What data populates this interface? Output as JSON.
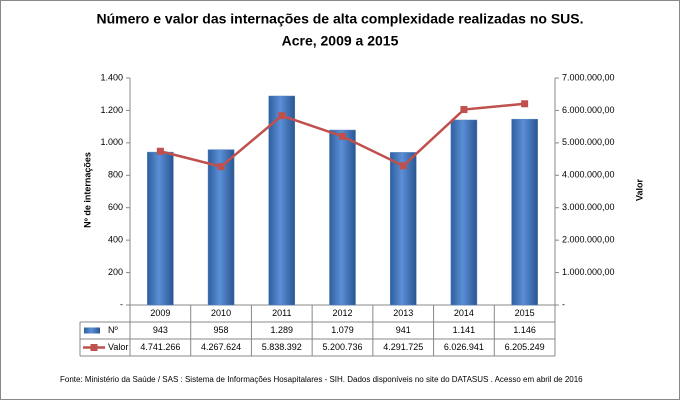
{
  "chart_data": {
    "type": "bar-line",
    "title": "Número e valor das internações de alta complexidade realizadas no SUS.",
    "subtitle": "Acre, 2009 a 2015",
    "y_label": "Nº de internações",
    "y2_label": "Valor",
    "categories": [
      "2009",
      "2010",
      "2011",
      "2012",
      "2013",
      "2014",
      "2015"
    ],
    "series": [
      {
        "name": "Nº",
        "type": "bar",
        "color": "#4f81bd",
        "values": [
          943,
          958,
          1289,
          1079,
          941,
          1141,
          1146
        ],
        "value_labels": [
          "943",
          "958",
          "1.289",
          "1.079",
          "941",
          "1.141",
          "1.146"
        ]
      },
      {
        "name": "Valor",
        "type": "line",
        "axis": "y2",
        "color": "#c0504d",
        "values": [
          4741266,
          4267624,
          5838392,
          5200736,
          4291725,
          6026941,
          6205249
        ],
        "value_labels": [
          "4.741.266",
          "4.267.624",
          "5.838.392",
          "5.200.736",
          "4.291.725",
          "6.026.941",
          "6.205.249"
        ]
      }
    ],
    "ylim": [
      0,
      1400
    ],
    "yticks": [
      {
        "value": 0,
        "label": "-"
      },
      200,
      400,
      600,
      800,
      {
        "value": 1000,
        "label": "1.000"
      },
      {
        "value": 1200,
        "label": "1.200"
      },
      {
        "value": 1400,
        "label": "1.400"
      }
    ],
    "y2lim": [
      0,
      7000000
    ],
    "y2ticks": [
      {
        "value": 0,
        "label": "-"
      },
      {
        "value": 1000000,
        "label": "1.000.000,00"
      },
      {
        "value": 2000000,
        "label": "2.000.000,00"
      },
      {
        "value": 3000000,
        "label": "3.000.000,00"
      },
      {
        "value": 4000000,
        "label": "4.000.000,00"
      },
      {
        "value": 5000000,
        "label": "5.000.000,00"
      },
      {
        "value": 6000000,
        "label": "6.000.000,00"
      },
      {
        "value": 7000000,
        "label": "7.000.000,00"
      }
    ],
    "grid": false,
    "source": "Fonte:  Ministério da Saúde / SAS : Sistema de Informações Hosapitalares - SIH. Dados disponíveis no site do DATASUS . Acesso em abril de 2016"
  }
}
